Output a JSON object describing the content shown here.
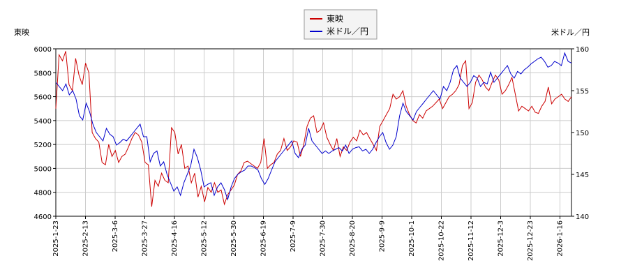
{
  "chart_data": {
    "type": "line",
    "y_left_label": "東映",
    "y_right_label": "米ドル／円",
    "y_left_lim": [
      4600,
      6000
    ],
    "y_left_ticks": [
      "4600",
      "4800",
      "5000",
      "5200",
      "5400",
      "5600",
      "5800",
      "6000"
    ],
    "y_right_lim": [
      140,
      160
    ],
    "y_right_ticks": [
      "140",
      "145",
      "150",
      "155",
      "160"
    ],
    "x_ticks": [
      "2025-1-23",
      "2025-2-13",
      "2025-3-6",
      "2025-3-27",
      "2025-4-16",
      "2025-5-12",
      "2025-5-30",
      "2025-6-19",
      "2025-7-9",
      "2025-7-30",
      "2025-8-20",
      "2025-9-9",
      "2025-10-1",
      "2025-10-22",
      "2025-11-12",
      "2025-12-3",
      "2025-12-23",
      "2026-1-16"
    ],
    "grid": true,
    "legend_position": "top-center",
    "series": [
      {
        "name": "東映",
        "axis": "left",
        "color": "#cc0000",
        "values": [
          5500,
          5950,
          5900,
          5980,
          5700,
          5650,
          5920,
          5780,
          5700,
          5880,
          5800,
          5300,
          5250,
          5220,
          5050,
          5030,
          5200,
          5100,
          5150,
          5050,
          5100,
          5120,
          5180,
          5250,
          5300,
          5280,
          5220,
          5050,
          5030,
          4680,
          4900,
          4850,
          4960,
          4900,
          4880,
          5340,
          5300,
          5120,
          5200,
          5000,
          5020,
          4880,
          4960,
          4760,
          4850,
          4720,
          4840,
          4800,
          4880,
          4800,
          4820,
          4700,
          4780,
          4820,
          4860,
          4950,
          4980,
          5050,
          5060,
          5040,
          5020,
          5000,
          5050,
          5250,
          5000,
          5030,
          5050,
          5120,
          5150,
          5250,
          5150,
          5180,
          5230,
          5220,
          5100,
          5200,
          5350,
          5420,
          5440,
          5300,
          5320,
          5380,
          5260,
          5200,
          5150,
          5250,
          5100,
          5180,
          5150,
          5220,
          5260,
          5230,
          5320,
          5280,
          5300,
          5250,
          5200,
          5150,
          5350,
          5400,
          5450,
          5500,
          5620,
          5580,
          5600,
          5650,
          5520,
          5450,
          5400,
          5380,
          5450,
          5420,
          5480,
          5500,
          5520,
          5550,
          5580,
          5500,
          5550,
          5600,
          5620,
          5650,
          5700,
          5860,
          5900,
          5500,
          5550,
          5720,
          5780,
          5740,
          5680,
          5650,
          5720,
          5780,
          5740,
          5620,
          5650,
          5700,
          5760,
          5620,
          5480,
          5520,
          5500,
          5480,
          5520,
          5470,
          5460,
          5520,
          5560,
          5680,
          5540,
          5580,
          5600,
          5620,
          5580,
          5560,
          5600
        ]
      },
      {
        "name": "米ドル／円",
        "axis": "right",
        "color": "#0000cc",
        "values": [
          156.0,
          155.5,
          155.0,
          155.8,
          154.5,
          155.0,
          154.0,
          152.0,
          151.5,
          153.5,
          152.5,
          151.0,
          150.0,
          149.5,
          149.0,
          150.5,
          149.8,
          149.5,
          148.5,
          148.8,
          149.2,
          149.0,
          149.5,
          150.0,
          150.5,
          151.0,
          149.5,
          149.5,
          146.5,
          147.5,
          147.8,
          146.0,
          146.5,
          145.0,
          144.0,
          143.0,
          143.5,
          142.5,
          144.0,
          145.0,
          146.0,
          148.0,
          147.0,
          145.5,
          143.5,
          143.8,
          144.0,
          142.5,
          143.5,
          144.0,
          143.2,
          142.0,
          143.5,
          144.5,
          145.0,
          145.3,
          145.5,
          146.0,
          146.0,
          145.8,
          145.5,
          144.5,
          143.8,
          144.5,
          145.5,
          146.5,
          147.0,
          147.5,
          148.0,
          148.5,
          149.0,
          147.5,
          147.0,
          148.0,
          148.5,
          150.5,
          149.0,
          148.5,
          148.0,
          147.5,
          147.8,
          147.5,
          147.8,
          148.0,
          148.2,
          147.8,
          148.5,
          147.5,
          148.0,
          148.2,
          148.3,
          147.8,
          148.0,
          147.5,
          148.0,
          148.8,
          149.5,
          150.0,
          148.8,
          148.0,
          148.5,
          149.5,
          152.0,
          153.5,
          152.5,
          152.0,
          151.5,
          152.5,
          153.0,
          153.5,
          154.0,
          154.5,
          155.0,
          154.5,
          154.0,
          155.5,
          155.0,
          156.0,
          157.5,
          158.0,
          156.5,
          156.0,
          155.5,
          156.0,
          156.8,
          156.5,
          155.5,
          156.0,
          155.8,
          157.2,
          156.0,
          156.5,
          157.0,
          157.5,
          158.0,
          157.0,
          156.5,
          157.3,
          157.0,
          157.5,
          157.8,
          158.2,
          158.5,
          158.8,
          159.0,
          158.5,
          157.8,
          158.0,
          158.5,
          158.3,
          158.0,
          159.5,
          158.5,
          158.3
        ]
      }
    ]
  }
}
